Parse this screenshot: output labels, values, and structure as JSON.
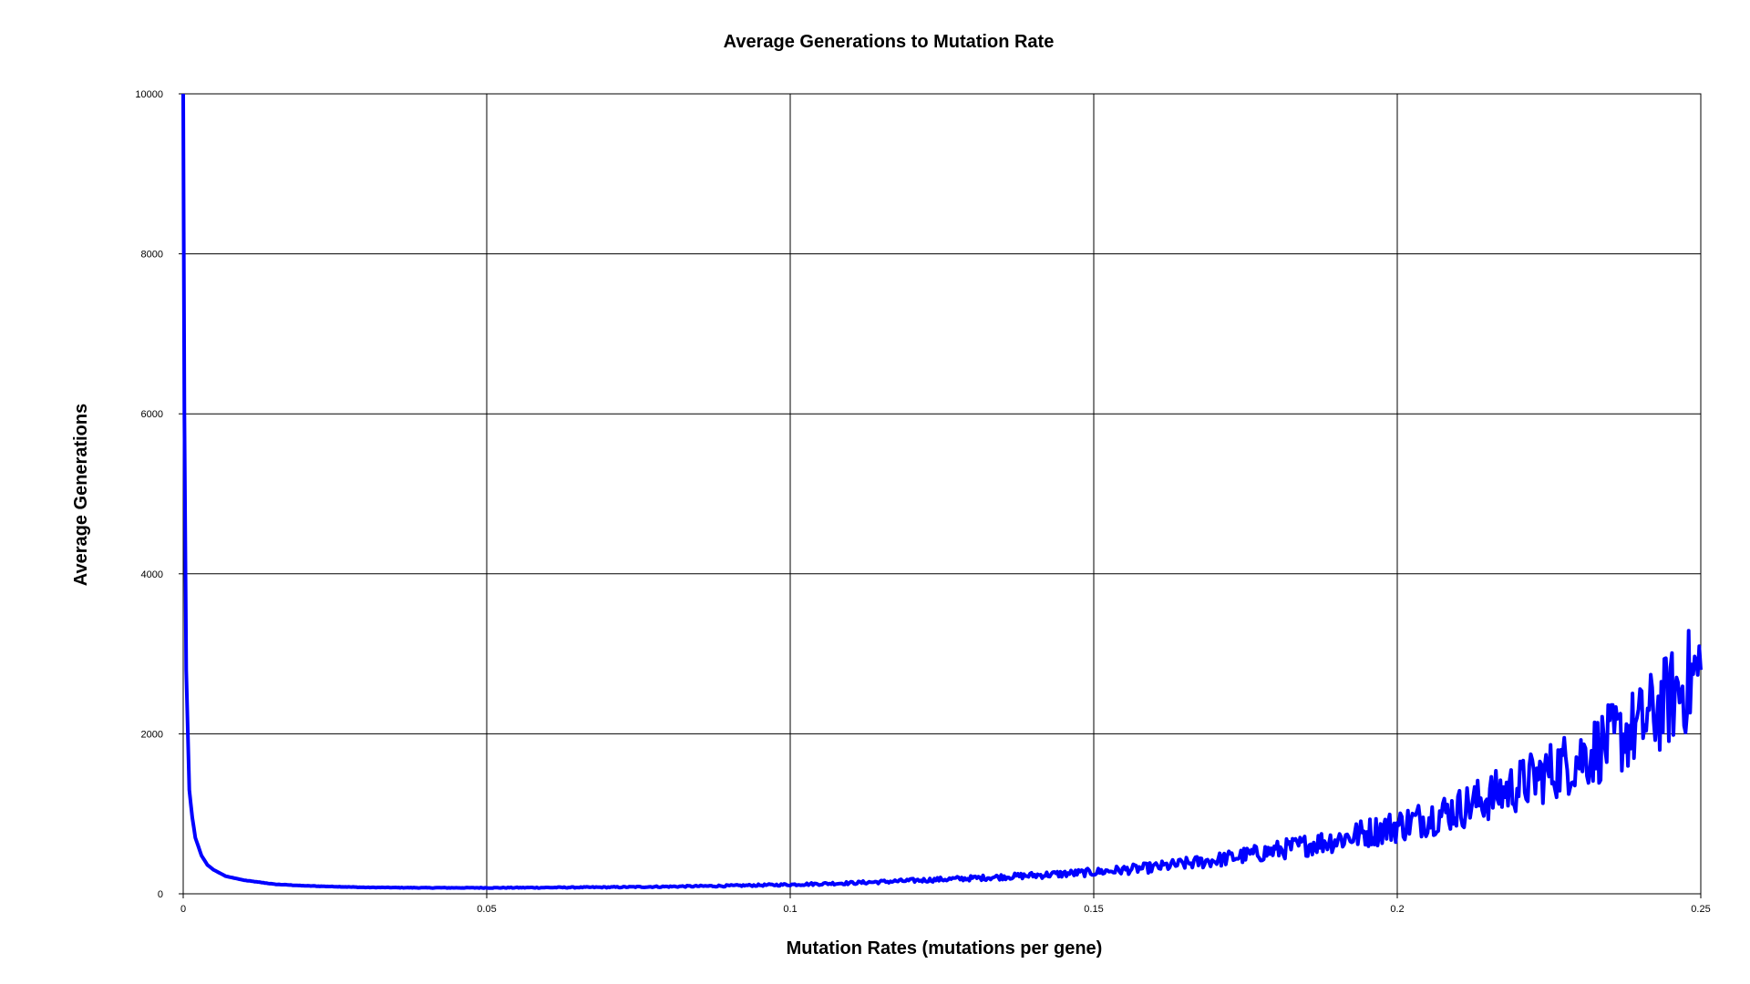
{
  "chart_data": {
    "type": "line",
    "title": "Average Generations to Mutation Rate",
    "xlabel": "Mutation Rates (mutations per gene)",
    "ylabel": "Average Generations",
    "xlim": [
      0,
      0.25
    ],
    "ylim": [
      0,
      10000
    ],
    "xticks": [
      0,
      0.05,
      0.1,
      0.15,
      0.2,
      0.25
    ],
    "xtick_labels": [
      "0",
      "0.05",
      "0.1",
      "0.15",
      "0.2",
      "0.25"
    ],
    "yticks": [
      0,
      2000,
      4000,
      6000,
      8000,
      10000
    ],
    "ytick_labels": [
      "0",
      "2000",
      "4000",
      "6000",
      "8000",
      "10000"
    ],
    "grid": true,
    "legend": "none",
    "series": [
      {
        "color": "#0000ff",
        "x": [
          0,
          0.0002,
          0.0005,
          0.001,
          0.0015,
          0.002,
          0.003,
          0.004,
          0.005,
          0.007,
          0.01,
          0.015,
          0.02,
          0.03,
          0.04,
          0.05,
          0.06,
          0.07,
          0.08,
          0.09,
          0.1,
          0.11,
          0.12,
          0.13,
          0.14,
          0.15,
          0.16,
          0.17,
          0.18,
          0.19,
          0.2,
          0.21,
          0.22,
          0.23,
          0.24,
          0.25
        ],
        "y": [
          10000,
          6000,
          2800,
          1300,
          950,
          700,
          480,
          360,
          300,
          220,
          170,
          120,
          100,
          80,
          75,
          75,
          78,
          82,
          90,
          100,
          115,
          135,
          165,
          195,
          230,
          270,
          330,
          420,
          540,
          680,
          850,
          1060,
          1350,
          1700,
          2100,
          2800
        ]
      }
    ]
  }
}
